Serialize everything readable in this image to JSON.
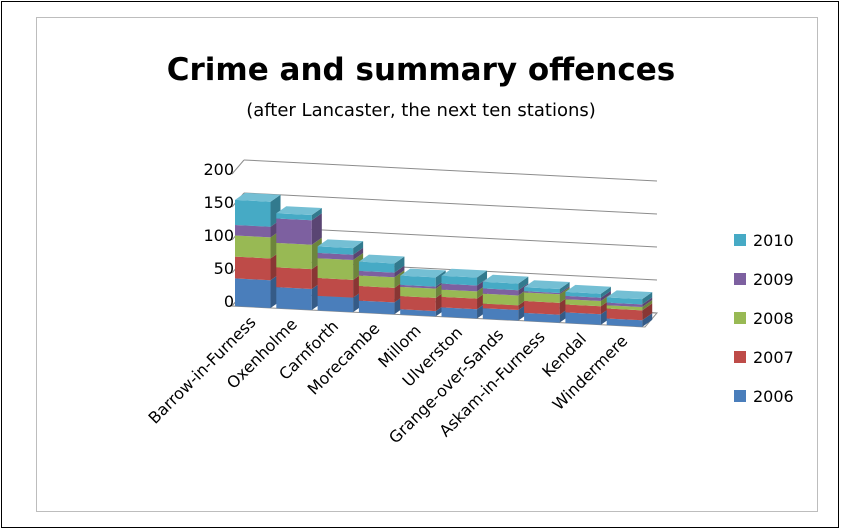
{
  "chart_data": {
    "type": "bar",
    "subtype": "stacked-3d-column",
    "title": "Crime and summary offences",
    "subtitle": "(after Lancaster, the next ten stations)",
    "xlabel": "",
    "ylabel": "",
    "ylim": [
      0,
      200
    ],
    "yticks": [
      "0",
      "50",
      "100",
      "150",
      "200"
    ],
    "grid": true,
    "legend_position": "right",
    "categories": [
      "Barrow-in-Furness",
      "Oxenholme",
      "Carnforth",
      "Morecambe",
      "Millom",
      "Ulverston",
      "Grange-over-Sands",
      "Askam-in-Furness",
      "Kendal",
      "Windermere"
    ],
    "series": [
      {
        "name": "2006",
        "color": "#4a7ebb",
        "values": [
          42,
          32,
          22,
          18,
          8,
          14,
          16,
          12,
          16,
          10
        ]
      },
      {
        "name": "2007",
        "color": "#be4b48",
        "values": [
          33,
          30,
          27,
          22,
          20,
          16,
          7,
          18,
          12,
          15
        ]
      },
      {
        "name": "2008",
        "color": "#98b954",
        "values": [
          32,
          37,
          30,
          16,
          14,
          11,
          15,
          13,
          8,
          5
        ]
      },
      {
        "name": "2009",
        "color": "#7d60a0",
        "values": [
          16,
          37,
          8,
          7,
          3,
          9,
          8,
          2,
          5,
          4
        ]
      },
      {
        "name": "2010",
        "color": "#46aac5",
        "values": [
          38,
          8,
          10,
          14,
          14,
          12,
          10,
          6,
          6,
          8
        ]
      }
    ]
  }
}
